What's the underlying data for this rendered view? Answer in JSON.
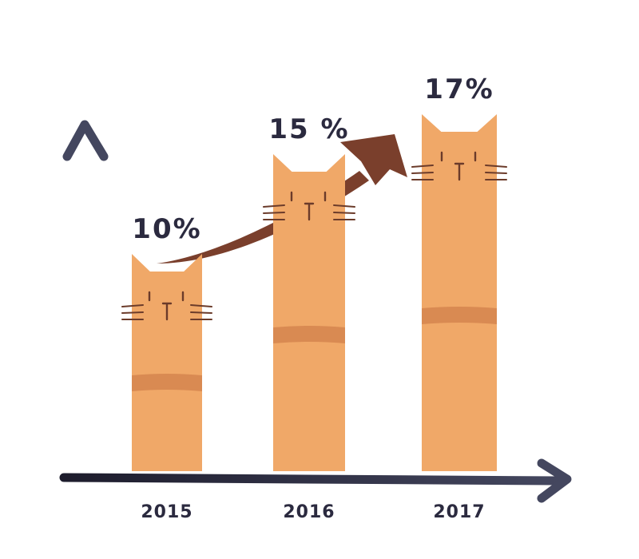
{
  "chart_data": {
    "type": "bar",
    "categories": [
      "2015",
      "2016",
      "2017"
    ],
    "values": [
      10,
      15,
      17
    ],
    "value_labels": [
      "10%",
      "15 %",
      "17%"
    ],
    "ylim": [
      0,
      20
    ],
    "grid": false,
    "trend_arrow": "up",
    "colors": {
      "bar": "#f0a868",
      "stripe": "#d98a52",
      "face": "#6b3b2a",
      "axis": "#2b2a3f",
      "arrow": "#7a3f2c"
    }
  }
}
